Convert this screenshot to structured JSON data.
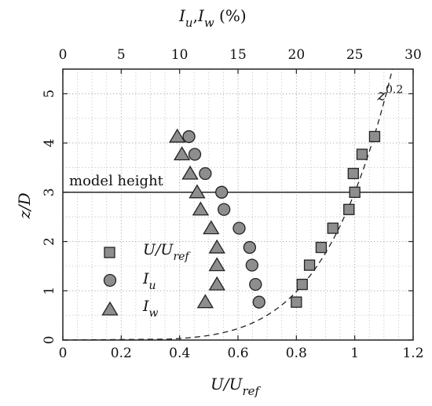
{
  "chart_data": {
    "type": "scatter",
    "title": "",
    "xlabel": {
      "main": "U/U",
      "sub": "ref"
    },
    "x2label": {
      "main_a": "I",
      "sub_a": "u",
      "sep": ",",
      "main_b": "I",
      "sub_b": "w",
      "unit": " (%)"
    },
    "ylabel": {
      "main": "z/D"
    },
    "xlim": [
      0,
      1.2
    ],
    "x2lim": [
      0,
      30
    ],
    "ylim": [
      0,
      5.5
    ],
    "xticks": [
      "0",
      "0.2",
      "0.4",
      "0.6",
      "0.8",
      "1",
      "1.2"
    ],
    "x2ticks": [
      "0",
      "5",
      "10",
      "15",
      "20",
      "25",
      "30"
    ],
    "yticks": [
      "0",
      "1",
      "2",
      "3",
      "4",
      "5"
    ],
    "grid": true,
    "legend_position": "bottom-left",
    "series": [
      {
        "name": {
          "main": "U/U",
          "sub": "ref"
        },
        "marker": "square",
        "axis": "bottom",
        "points": [
          {
            "x": 0.8,
            "y": 0.77
          },
          {
            "x": 0.82,
            "y": 1.13
          },
          {
            "x": 0.845,
            "y": 1.52
          },
          {
            "x": 0.885,
            "y": 1.88
          },
          {
            "x": 0.925,
            "y": 2.27
          },
          {
            "x": 0.98,
            "y": 2.65
          },
          {
            "x": 1.0,
            "y": 3.0
          },
          {
            "x": 0.995,
            "y": 3.38
          },
          {
            "x": 1.025,
            "y": 3.77
          },
          {
            "x": 1.068,
            "y": 4.13
          }
        ]
      },
      {
        "name": {
          "main": "I",
          "sub": "u"
        },
        "marker": "circle",
        "axis": "top",
        "points": [
          {
            "x": 16.8,
            "y": 0.77
          },
          {
            "x": 16.5,
            "y": 1.13
          },
          {
            "x": 16.2,
            "y": 1.52
          },
          {
            "x": 16.0,
            "y": 1.88
          },
          {
            "x": 15.1,
            "y": 2.27
          },
          {
            "x": 13.8,
            "y": 2.65
          },
          {
            "x": 13.6,
            "y": 3.0
          },
          {
            "x": 12.2,
            "y": 3.38
          },
          {
            "x": 11.3,
            "y": 3.77
          },
          {
            "x": 10.8,
            "y": 4.13
          }
        ]
      },
      {
        "name": {
          "main": "I",
          "sub": "w"
        },
        "marker": "triangle",
        "axis": "top",
        "points": [
          {
            "x": 12.2,
            "y": 0.77
          },
          {
            "x": 13.2,
            "y": 1.13
          },
          {
            "x": 13.2,
            "y": 1.52
          },
          {
            "x": 13.2,
            "y": 1.88
          },
          {
            "x": 12.7,
            "y": 2.27
          },
          {
            "x": 11.8,
            "y": 2.65
          },
          {
            "x": 11.5,
            "y": 3.0
          },
          {
            "x": 10.9,
            "y": 3.38
          },
          {
            "x": 10.2,
            "y": 3.77
          },
          {
            "x": 9.8,
            "y": 4.13
          }
        ]
      }
    ],
    "reference_curve": {
      "label": {
        "main": "z",
        "sup": "0.2"
      },
      "exponent": 0.2,
      "style": "dashed",
      "x_at_y3": 1.0
    },
    "reference_line": {
      "label": "model height",
      "y": 3
    }
  }
}
